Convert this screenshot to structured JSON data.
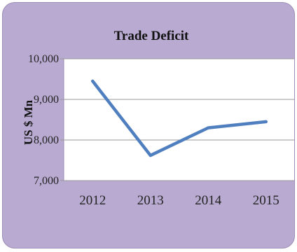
{
  "chart_data": {
    "type": "line",
    "title": "Trade Deficit",
    "xlabel": "",
    "ylabel": "US $ Mn",
    "categories": [
      "2012",
      "2013",
      "2014",
      "2015"
    ],
    "series": [
      {
        "values": [
          9450,
          7620,
          8300,
          8450
        ]
      }
    ],
    "ylim": [
      7000,
      10000
    ],
    "yticks": [
      7000,
      8000,
      9000,
      10000
    ],
    "ytick_labels": [
      "7,000",
      "8,000",
      "9,000",
      "10,000"
    ],
    "grid": true,
    "legend": "none",
    "colors": {
      "background": "#b8aad0",
      "plot_area": "#ffffff",
      "line": "#4f7fbf",
      "grid": "#999999"
    }
  }
}
